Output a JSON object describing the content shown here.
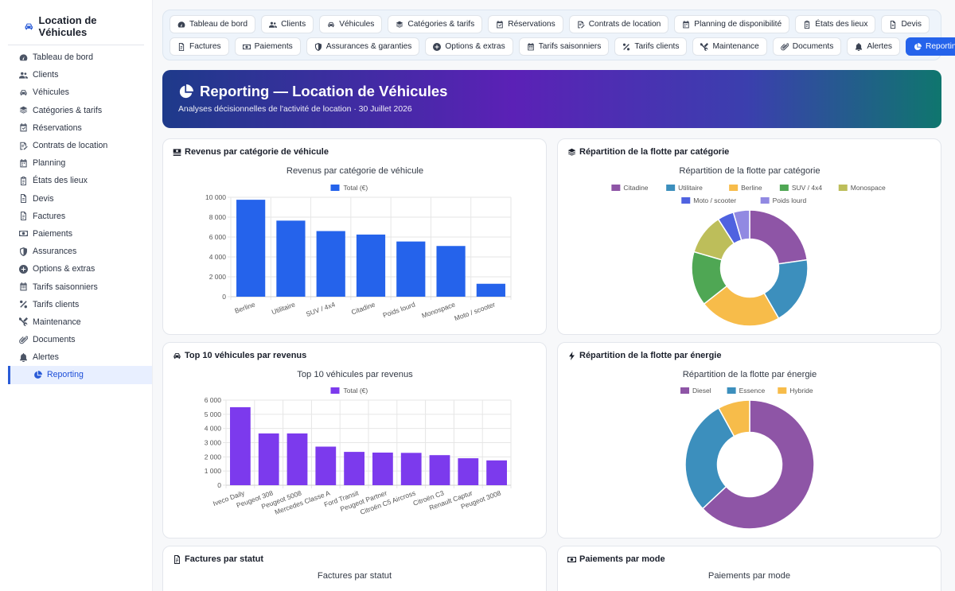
{
  "sidebar": {
    "brand": "Location de Véhicules",
    "brand_icon": "car-icon",
    "items": [
      {
        "label": "Tableau de bord",
        "icon": "gauge-icon"
      },
      {
        "label": "Clients",
        "icon": "users-icon"
      },
      {
        "label": "Véhicules",
        "icon": "car-icon"
      },
      {
        "label": "Catégories & tarifs",
        "icon": "layers-icon"
      },
      {
        "label": "Réservations",
        "icon": "calendar-check-icon"
      },
      {
        "label": "Contrats de location",
        "icon": "contract-icon"
      },
      {
        "label": "Planning",
        "icon": "calendar-icon"
      },
      {
        "label": "États des lieux",
        "icon": "clipboard-icon"
      },
      {
        "label": "Devis",
        "icon": "file-icon"
      },
      {
        "label": "Factures",
        "icon": "invoice-icon"
      },
      {
        "label": "Paiements",
        "icon": "money-icon"
      },
      {
        "label": "Assurances",
        "icon": "shield-icon"
      },
      {
        "label": "Options & extras",
        "icon": "plus-circle-icon"
      },
      {
        "label": "Tarifs saisonniers",
        "icon": "calendar-grid-icon"
      },
      {
        "label": "Tarifs clients",
        "icon": "percent-icon"
      },
      {
        "label": "Maintenance",
        "icon": "tools-icon"
      },
      {
        "label": "Documents",
        "icon": "paperclip-icon"
      },
      {
        "label": "Alertes",
        "icon": "bell-icon"
      },
      {
        "label": "Reporting",
        "icon": "pie-chart-icon",
        "active": true
      }
    ]
  },
  "tabs": {
    "row1": [
      {
        "label": "Tableau de bord",
        "icon": "gauge-icon"
      },
      {
        "label": "Clients",
        "icon": "users-icon"
      },
      {
        "label": "Véhicules",
        "icon": "car-icon"
      },
      {
        "label": "Catégories & tarifs",
        "icon": "layers-icon"
      },
      {
        "label": "Réservations",
        "icon": "calendar-check-icon"
      },
      {
        "label": "Contrats de location",
        "icon": "contract-icon"
      },
      {
        "label": "Planning de disponibilité",
        "icon": "calendar-icon"
      },
      {
        "label": "États des lieux",
        "icon": "clipboard-icon"
      },
      {
        "label": "Devis",
        "icon": "file-icon"
      }
    ],
    "row2": [
      {
        "label": "Factures",
        "icon": "invoice-icon"
      },
      {
        "label": "Paiements",
        "icon": "money-icon"
      },
      {
        "label": "Assurances & garanties",
        "icon": "shield-icon"
      },
      {
        "label": "Options & extras",
        "icon": "plus-circle-icon"
      },
      {
        "label": "Tarifs saisonniers",
        "icon": "calendar-grid-icon"
      },
      {
        "label": "Tarifs clients",
        "icon": "percent-icon"
      },
      {
        "label": "Maintenance",
        "icon": "tools-icon"
      },
      {
        "label": "Documents",
        "icon": "paperclip-icon"
      },
      {
        "label": "Alertes",
        "icon": "bell-icon"
      },
      {
        "label": "Reporting",
        "icon": "pie-chart-icon",
        "active": true
      }
    ]
  },
  "banner": {
    "title": "Reporting — Location de Véhicules",
    "subtitle": "Analyses décisionnelles de l'activité de location · 30 Juillet 2026"
  },
  "cards": {
    "revenue_cat": {
      "title": "Revenus par catégorie de véhicule",
      "icon": "money-stack-icon"
    },
    "fleet_cat": {
      "title": "Répartition de la flotte par catégorie",
      "icon": "layers-icon"
    },
    "top10": {
      "title": "Top 10 véhicules par revenus",
      "icon": "car-icon"
    },
    "fleet_energy": {
      "title": "Répartition de la flotte par énergie",
      "icon": "bolt-icon"
    },
    "invoices": {
      "title": "Factures par statut",
      "icon": "invoice-icon",
      "subtitle": "Factures par statut"
    },
    "payments": {
      "title": "Paiements par mode",
      "icon": "money-icon",
      "subtitle": "Paiements par mode"
    }
  },
  "colors": {
    "accent": "#2563eb",
    "bar_blue": "#2563eb",
    "bar_purple": "#7c3aed"
  },
  "chart_data": [
    {
      "id": "revenue_cat",
      "type": "bar",
      "title": "Revenus par catégorie de véhicule",
      "categories": [
        "Berline",
        "Utilitaire",
        "SUV / 4x4",
        "Citadine",
        "Poids lourd",
        "Monospace",
        "Moto / scooter"
      ],
      "series": [
        {
          "name": "Total (€)",
          "values": [
            9750,
            7650,
            6600,
            6250,
            5550,
            5100,
            1300
          ],
          "color": "#2563eb"
        }
      ],
      "ylim": [
        0,
        10000
      ],
      "yticks": [
        0,
        2000,
        4000,
        6000,
        8000,
        10000
      ],
      "ytick_labels": [
        "0",
        "2 000",
        "4 000",
        "6 000",
        "8 000",
        "10 000"
      ],
      "grid": true,
      "legend": "top"
    },
    {
      "id": "fleet_cat",
      "type": "pie",
      "title": "Répartition de la flotte par catégorie",
      "labels": [
        "Citadine",
        "Utilitaire",
        "Berline",
        "SUV / 4x4",
        "Monospace",
        "Moto / scooter",
        "Poids lourd"
      ],
      "values": [
        6,
        5,
        6,
        4,
        3,
        1.2,
        1.2
      ],
      "colors": [
        "#8e55a6",
        "#3c8fbd",
        "#f7bc4a",
        "#4fa754",
        "#bdbe5a",
        "#4f62e0",
        "#9189e2"
      ],
      "legend": "top"
    },
    {
      "id": "top10",
      "type": "bar",
      "title": "Top 10 véhicules par revenus",
      "categories": [
        "Iveco Daily",
        "Peugeot 308",
        "Peugeot 5008",
        "Mercedes Classe A",
        "Ford Transit",
        "Peugeot Partner",
        "Citroën C5 Aircross",
        "Citroën C3",
        "Renault Captur",
        "Peugeot 3008"
      ],
      "series": [
        {
          "name": "Total (€)",
          "values": [
            5500,
            3650,
            3650,
            2720,
            2350,
            2300,
            2280,
            2120,
            1900,
            1750
          ],
          "color": "#7c3aed"
        }
      ],
      "ylim": [
        0,
        6000
      ],
      "yticks": [
        0,
        1000,
        2000,
        3000,
        4000,
        5000,
        6000
      ],
      "ytick_labels": [
        "0",
        "1 000",
        "2 000",
        "3 000",
        "4 000",
        "5 000",
        "6 000"
      ],
      "grid": true,
      "legend": "top"
    },
    {
      "id": "fleet_energy",
      "type": "pie",
      "title": "Répartition de la flotte par énergie",
      "labels": [
        "Diesel",
        "Essence",
        "Hybride"
      ],
      "values": [
        63,
        29,
        8
      ],
      "colors": [
        "#8e55a6",
        "#3c8fbd",
        "#f7bc4a"
      ],
      "legend": "top"
    }
  ]
}
